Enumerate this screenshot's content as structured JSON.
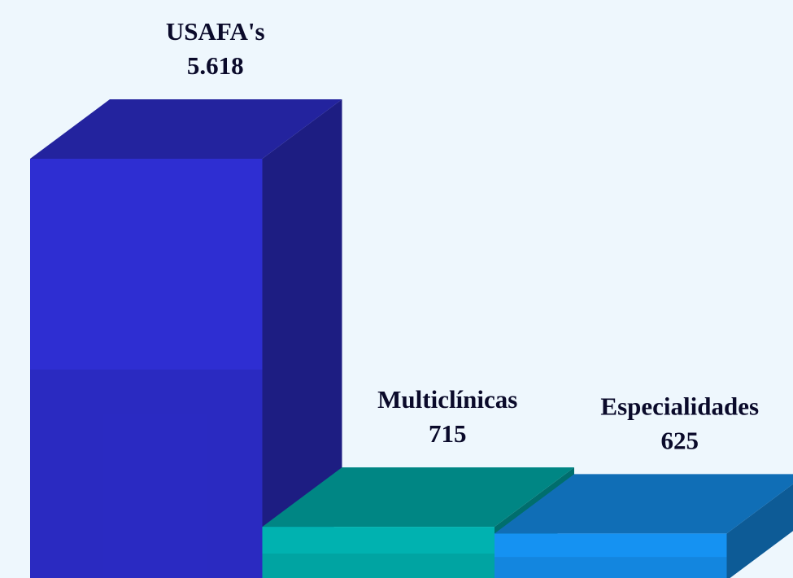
{
  "chart_data": {
    "type": "bar3d",
    "categories": [
      "USAFA's",
      "Multiclínicas",
      "Especialidades"
    ],
    "values": [
      5618,
      715,
      625
    ],
    "value_labels": [
      "5.618",
      "715",
      "625"
    ],
    "colors": [
      "#2e2ed2",
      "#00b2b0",
      "#1592f2"
    ]
  }
}
